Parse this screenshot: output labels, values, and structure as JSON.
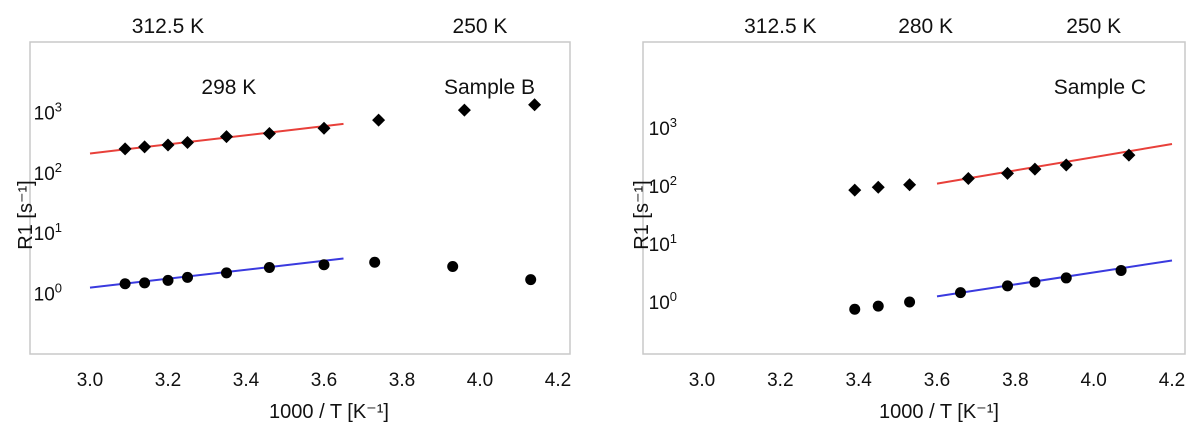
{
  "chart_data": [
    {
      "type": "scatter",
      "xlabel": "1000 / T [K⁻¹]",
      "ylabel": "R1 [s⁻¹]",
      "log_y": true,
      "xlim": [
        3.0,
        4.2
      ],
      "ylim": [
        0.1,
        100000
      ],
      "x_ticks": [
        "3.0",
        "3.2",
        "3.4",
        "3.6",
        "3.8",
        "4.0",
        "4.2"
      ],
      "x_tick_values": [
        3.0,
        3.2,
        3.4,
        3.6,
        3.8,
        4.0,
        4.2
      ],
      "y_ticks": [
        {
          "base": "10",
          "exp": "0",
          "value": 1
        },
        {
          "base": "10",
          "exp": "1",
          "value": 10
        },
        {
          "base": "10",
          "exp": "2",
          "value": 100
        },
        {
          "base": "10",
          "exp": "3",
          "value": 1000
        }
      ],
      "top_annotations": [
        {
          "text": "312.5 K",
          "x": 3.2,
          "row": "top"
        },
        {
          "text": "250 K",
          "x": 4.0,
          "row": "top"
        },
        {
          "text": "298 K",
          "x": 3.356,
          "row": "inner"
        }
      ],
      "sample_label": "Sample B",
      "grid": false,
      "series": [
        {
          "marker": "diamond",
          "x": [
            3.09,
            3.14,
            3.2,
            3.25,
            3.35,
            3.46,
            3.6,
            3.74,
            3.96,
            4.14
          ],
          "y": [
            250,
            270,
            290,
            320,
            400,
            450,
            550,
            750,
            1100,
            1350
          ]
        },
        {
          "marker": "circle",
          "x": [
            3.09,
            3.14,
            3.2,
            3.25,
            3.35,
            3.46,
            3.6,
            3.73,
            3.93,
            4.13
          ],
          "y": [
            1.45,
            1.5,
            1.65,
            1.85,
            2.2,
            2.7,
            3.0,
            3.3,
            2.8,
            1.7
          ]
        }
      ],
      "fits": [
        {
          "color": "#e8403a",
          "x": [
            3.0,
            3.65
          ],
          "y": [
            210,
            650
          ]
        },
        {
          "color": "#3a3adf",
          "x": [
            3.0,
            3.65
          ],
          "y": [
            1.25,
            3.8
          ]
        }
      ]
    },
    {
      "type": "scatter",
      "xlabel": "1000 / T [K⁻¹]",
      "ylabel": "R1 [s⁻¹]",
      "log_y": true,
      "xlim": [
        3.0,
        4.2
      ],
      "ylim": [
        0.1,
        100000
      ],
      "x_ticks": [
        "3.0",
        "3.2",
        "3.4",
        "3.6",
        "3.8",
        "4.0",
        "4.2"
      ],
      "x_tick_values": [
        3.0,
        3.2,
        3.4,
        3.6,
        3.8,
        4.0,
        4.2
      ],
      "y_ticks": [
        {
          "base": "10",
          "exp": "0",
          "value": 1
        },
        {
          "base": "10",
          "exp": "1",
          "value": 10
        },
        {
          "base": "10",
          "exp": "2",
          "value": 100
        },
        {
          "base": "10",
          "exp": "3",
          "value": 1000
        }
      ],
      "top_annotations": [
        {
          "text": "312.5 K",
          "x": 3.2,
          "row": "top"
        },
        {
          "text": "280 K",
          "x": 3.571,
          "row": "top"
        },
        {
          "text": "250 K",
          "x": 4.0,
          "row": "top"
        }
      ],
      "sample_label": "Sample C",
      "grid": false,
      "series": [
        {
          "marker": "diamond",
          "x": [
            3.39,
            3.45,
            3.53,
            3.68,
            3.78,
            3.85,
            3.93,
            4.09
          ],
          "y": [
            85,
            95,
            105,
            135,
            165,
            195,
            230,
            340
          ]
        },
        {
          "marker": "circle",
          "x": [
            3.39,
            3.45,
            3.53,
            3.66,
            3.78,
            3.85,
            3.93,
            4.07
          ],
          "y": [
            0.75,
            0.85,
            1.0,
            1.45,
            1.9,
            2.2,
            2.6,
            3.5
          ]
        }
      ],
      "fits": [
        {
          "color": "#e8403a",
          "x": [
            3.6,
            4.2
          ],
          "y": [
            110,
            530
          ]
        },
        {
          "color": "#3a3adf",
          "x": [
            3.6,
            4.2
          ],
          "y": [
            1.25,
            5.2
          ]
        }
      ]
    }
  ]
}
